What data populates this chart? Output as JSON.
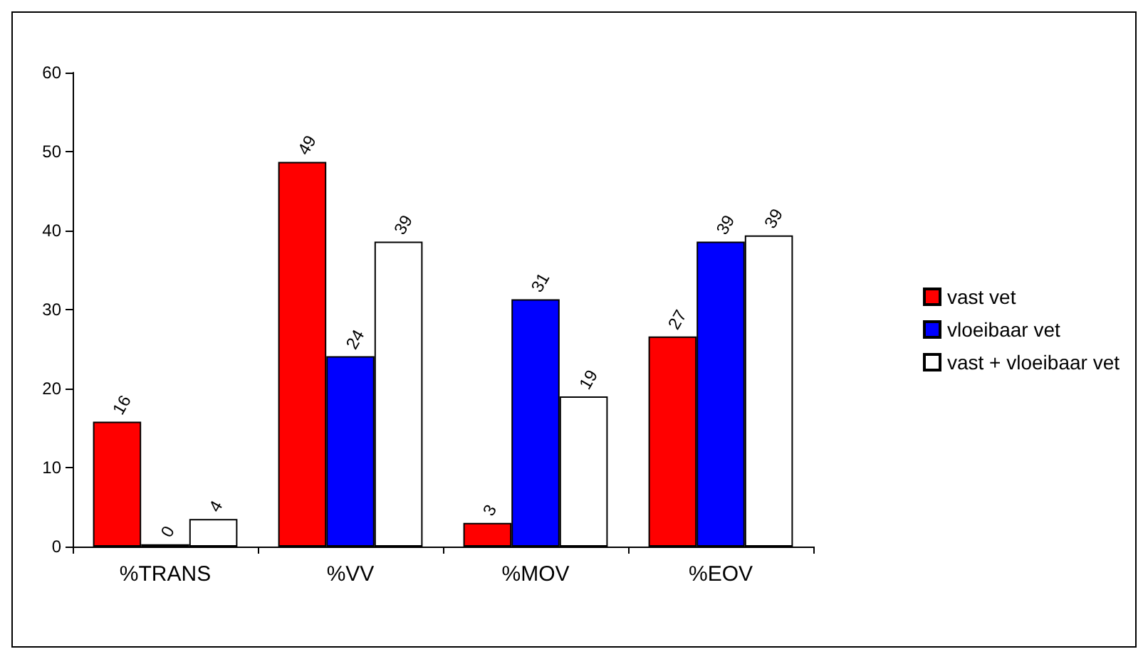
{
  "chart_data": {
    "type": "bar",
    "categories": [
      "%TRANS",
      "%VV",
      "%MOV",
      "%EOV"
    ],
    "series": [
      {
        "name": "vast vet",
        "color": "#ff0000",
        "values": [
          15.8,
          48.7,
          3.0,
          26.6
        ],
        "value_labels": [
          "16",
          "49",
          "3",
          "27"
        ]
      },
      {
        "name": "vloeibaar vet",
        "color": "#0000ff",
        "values": [
          0.3,
          24.1,
          31.3,
          38.6
        ],
        "value_labels": [
          "0",
          "24",
          "31",
          "39"
        ]
      },
      {
        "name": "vast + vloeibaar vet",
        "color": "#ffffff",
        "values": [
          3.5,
          38.6,
          19.0,
          39.4
        ],
        "value_labels": [
          "4",
          "39",
          "19",
          "39"
        ]
      }
    ],
    "ylim": [
      0,
      60
    ],
    "yticks": [
      0,
      10,
      20,
      30,
      40,
      50,
      60
    ],
    "grid": false,
    "legend": "right"
  }
}
